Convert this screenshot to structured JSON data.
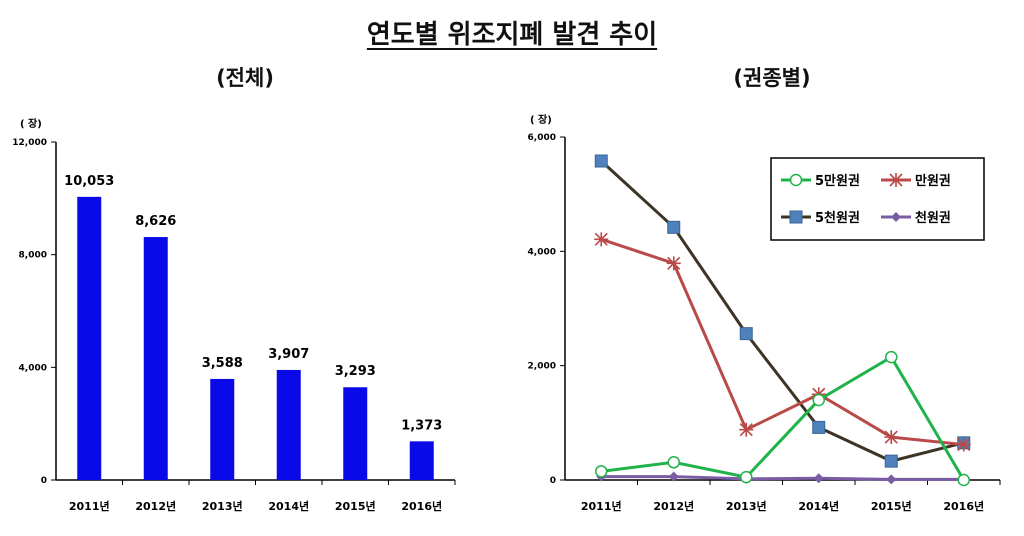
{
  "title": "연도별 위조지폐 발견 추이",
  "chart_data": [
    {
      "type": "bar",
      "subtitle": "(전체)",
      "unit": "( 장)",
      "categories": [
        "2011년",
        "2012년",
        "2013년",
        "2014년",
        "2015년",
        "2016년"
      ],
      "values": [
        10053,
        8626,
        3588,
        3907,
        3293,
        1373
      ],
      "value_labels": [
        "10,053",
        "8,626",
        "3,588",
        "3,907",
        "3,293",
        "1,373"
      ],
      "ylim": [
        0,
        12000
      ],
      "yticks": [
        "0",
        "4,000",
        "8,000",
        "12,000"
      ],
      "ytick_values": [
        0,
        4000,
        8000,
        12000
      ],
      "colors": {
        "bar": "#0a0ae8",
        "last_label": "#0a0a80"
      },
      "grid": false
    },
    {
      "type": "line",
      "subtitle": "(권종별)",
      "unit": "( 장)",
      "categories": [
        "2011년",
        "2012년",
        "2013년",
        "2014년",
        "2015년",
        "2016년"
      ],
      "ylim": [
        0,
        6000
      ],
      "yticks": [
        "0",
        "2,000",
        "4,000",
        "6,000"
      ],
      "ytick_values": [
        0,
        2000,
        4000,
        6000
      ],
      "legend_position": "top-right",
      "grid": false,
      "series": [
        {
          "name": "5만원권",
          "values": [
            150,
            310,
            50,
            1400,
            2150,
            0
          ],
          "color": "#1fb34a",
          "marker": "circle"
        },
        {
          "name": "만원권",
          "values": [
            4210,
            3790,
            880,
            1500,
            750,
            620
          ],
          "color": "#b94a48",
          "marker": "star"
        },
        {
          "name": "5천원권",
          "values": [
            5580,
            4420,
            2560,
            920,
            330,
            650
          ],
          "color": "#3d3426",
          "marker": "square"
        },
        {
          "name": "천원권",
          "values": [
            60,
            60,
            20,
            30,
            10,
            10
          ],
          "color": "#7a5ca5",
          "marker": "diamond"
        }
      ]
    }
  ]
}
